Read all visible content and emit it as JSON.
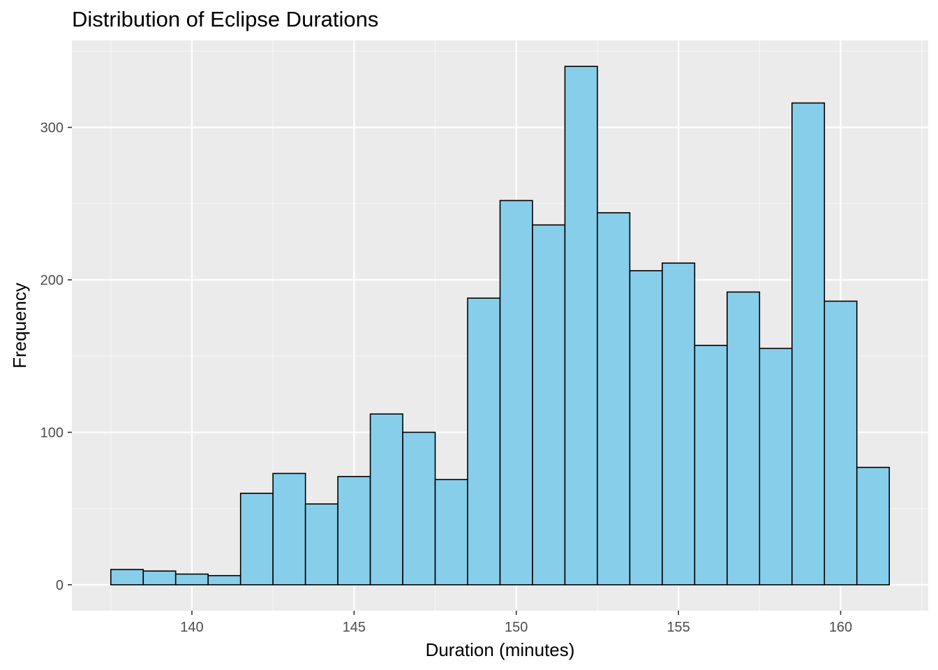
{
  "chart_data": {
    "type": "bar",
    "title": "Distribution of Eclipse Durations",
    "xlabel": "Duration (minutes)",
    "ylabel": "Frequency",
    "bin_width": 1,
    "bins": [
      {
        "x": 138,
        "count": 10
      },
      {
        "x": 139,
        "count": 9
      },
      {
        "x": 140,
        "count": 7
      },
      {
        "x": 141,
        "count": 6
      },
      {
        "x": 142,
        "count": 60
      },
      {
        "x": 143,
        "count": 73
      },
      {
        "x": 144,
        "count": 53
      },
      {
        "x": 145,
        "count": 71
      },
      {
        "x": 146,
        "count": 112
      },
      {
        "x": 147,
        "count": 100
      },
      {
        "x": 148,
        "count": 69
      },
      {
        "x": 149,
        "count": 188
      },
      {
        "x": 150,
        "count": 252
      },
      {
        "x": 151,
        "count": 236
      },
      {
        "x": 152,
        "count": 340
      },
      {
        "x": 153,
        "count": 244
      },
      {
        "x": 154,
        "count": 206
      },
      {
        "x": 155,
        "count": 211
      },
      {
        "x": 156,
        "count": 157
      },
      {
        "x": 157,
        "count": 192
      },
      {
        "x": 158,
        "count": 155
      },
      {
        "x": 159,
        "count": 316
      },
      {
        "x": 160,
        "count": 186
      },
      {
        "x": 161,
        "count": 77
      }
    ],
    "x_ticks": [
      140,
      145,
      150,
      155,
      160
    ],
    "y_ticks": [
      0,
      100,
      200,
      300
    ],
    "xlim": [
      136.3,
      162.7
    ],
    "ylim": [
      -17,
      357
    ],
    "grid": true,
    "legend": "none",
    "colors": {
      "bar_fill": "#87CEEB",
      "bar_stroke": "#000000",
      "panel_bg": "#EBEBEB",
      "grid_major": "#FFFFFF",
      "grid_minor": "#F7F7F7",
      "tick_text": "#4D4D4D"
    }
  }
}
